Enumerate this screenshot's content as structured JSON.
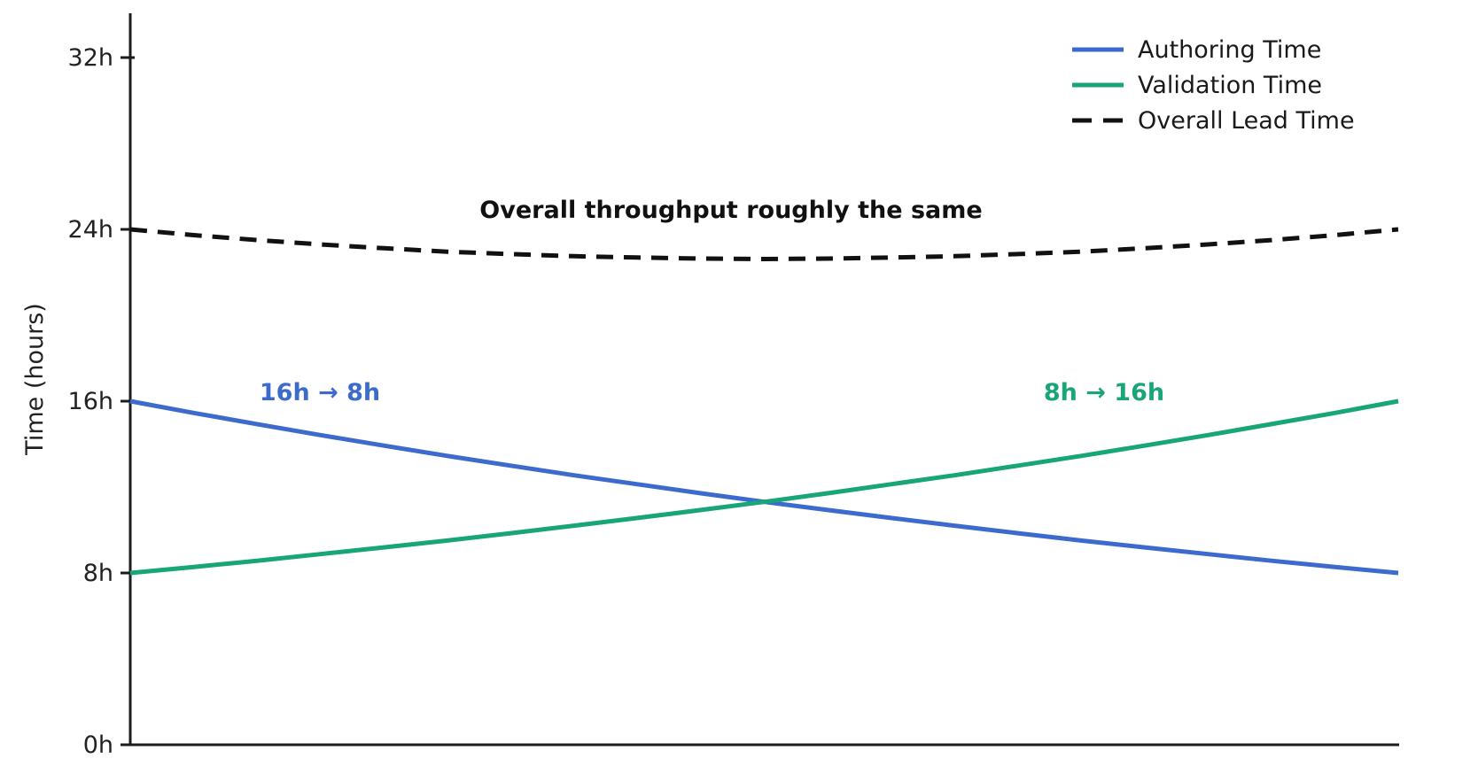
{
  "chart_data": {
    "type": "line",
    "title": "",
    "xlabel": "",
    "ylabel": "Time (hours)",
    "xlim": [
      0,
      1
    ],
    "ylim": [
      0,
      34
    ],
    "grid": false,
    "legend_position": "upper right",
    "legend_frame": false,
    "x_tick_labels": [],
    "y_ticks": [
      {
        "label": "0h",
        "value": 0
      },
      {
        "label": "8h",
        "value": 8
      },
      {
        "label": "16h",
        "value": 16
      },
      {
        "label": "24h",
        "value": 24
      },
      {
        "label": "32h",
        "value": 32
      }
    ],
    "x": [
      0,
      0.05,
      0.1,
      0.15,
      0.2,
      0.25,
      0.3,
      0.35,
      0.4,
      0.45,
      0.5,
      0.55,
      0.6,
      0.65,
      0.7,
      0.75,
      0.8,
      0.85,
      0.9,
      0.95,
      1
    ],
    "series": [
      {
        "name": "Authoring Time",
        "color": "#3d6bcd",
        "style": "solid",
        "start_value": 16,
        "end_value": 8,
        "values": [
          16,
          15.45,
          14.93,
          14.42,
          13.93,
          13.45,
          13.0,
          12.55,
          12.13,
          11.71,
          11.31,
          10.93,
          10.56,
          10.2,
          9.85,
          9.51,
          9.19,
          8.88,
          8.57,
          8.28,
          8
        ]
      },
      {
        "name": "Validation Time",
        "color": "#18a577",
        "style": "solid",
        "start_value": 8,
        "end_value": 16,
        "values": [
          8,
          8.28,
          8.57,
          8.88,
          9.19,
          9.51,
          9.85,
          10.2,
          10.56,
          10.93,
          11.31,
          11.71,
          12.13,
          12.55,
          13.0,
          13.45,
          13.93,
          14.42,
          14.93,
          15.45,
          16
        ]
      },
      {
        "name": "Overall Lead Time",
        "color": "#111111",
        "style": "dashed",
        "start_value": 24,
        "end_value": 24,
        "values": [
          24,
          23.73,
          23.5,
          23.3,
          23.12,
          22.96,
          22.85,
          22.75,
          22.69,
          22.64,
          22.62,
          22.64,
          22.69,
          22.75,
          22.85,
          22.96,
          23.12,
          23.3,
          23.5,
          23.73,
          24
        ]
      }
    ],
    "annotations": [
      {
        "text": "Overall throughput roughly the same",
        "color": "#111111"
      },
      {
        "text": "16h → 8h",
        "color": "#3d6bcd"
      },
      {
        "text": "8h → 16h",
        "color": "#18a577"
      }
    ]
  }
}
